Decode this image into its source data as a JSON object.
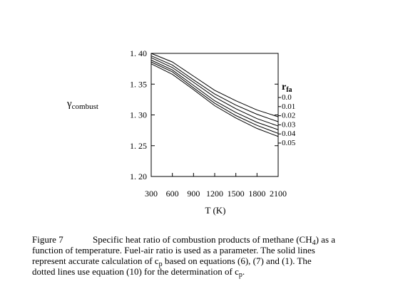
{
  "chart_data": {
    "type": "line",
    "y_label": "γ",
    "y_label_subscript": "combust",
    "x_label": "T  (K)",
    "legend_title": "r",
    "legend_title_subscript": "fa",
    "x": [
      300,
      600,
      900,
      1200,
      1500,
      1800,
      2100
    ],
    "xlim": [
      300,
      2100
    ],
    "xticks": [
      300,
      600,
      900,
      1200,
      1500,
      1800,
      2100
    ],
    "ylim": [
      1.2,
      1.4
    ],
    "yticks": [
      {
        "value": 1.2,
        "label": "1. 20"
      },
      {
        "value": 1.25,
        "label": "1. 25"
      },
      {
        "value": 1.3,
        "label": "1. 30"
      },
      {
        "value": 1.35,
        "label": "1. 35"
      },
      {
        "value": 1.4,
        "label": "1. 40"
      }
    ],
    "series": [
      {
        "name": "0.0",
        "color": "#000000",
        "values": [
          1.4,
          1.386,
          1.363,
          1.34,
          1.323,
          1.308,
          1.297
        ]
      },
      {
        "name": "0.01",
        "color": "#000000",
        "values": [
          1.396,
          1.381,
          1.357,
          1.334,
          1.316,
          1.301,
          1.289
        ]
      },
      {
        "name": "0.02",
        "color": "#000000",
        "values": [
          1.393,
          1.377,
          1.353,
          1.329,
          1.31,
          1.294,
          1.282
        ]
      },
      {
        "name": "0.03",
        "color": "#000000",
        "values": [
          1.389,
          1.373,
          1.348,
          1.323,
          1.304,
          1.288,
          1.276
        ]
      },
      {
        "name": "0.04",
        "color": "#000000",
        "values": [
          1.386,
          1.37,
          1.344,
          1.319,
          1.299,
          1.283,
          1.27
        ]
      },
      {
        "name": "0.05",
        "color": "#000000",
        "values": [
          1.383,
          1.366,
          1.341,
          1.315,
          1.295,
          1.278,
          1.265
        ]
      }
    ]
  },
  "caption": {
    "label": "Figure 7",
    "lines": [
      [
        "Specific heat ratio of combustion products of methane (CH",
        "4",
        ") as a"
      ],
      [
        "function of temperature.  Fuel-air ratio is used as a parameter.  The solid lines"
      ],
      [
        "represent accurate calculation of c",
        "p",
        " based on equations (6), (7) and (1).  The"
      ],
      [
        "dotted lines use equation (10) for the determination of c",
        "p",
        "."
      ]
    ]
  }
}
